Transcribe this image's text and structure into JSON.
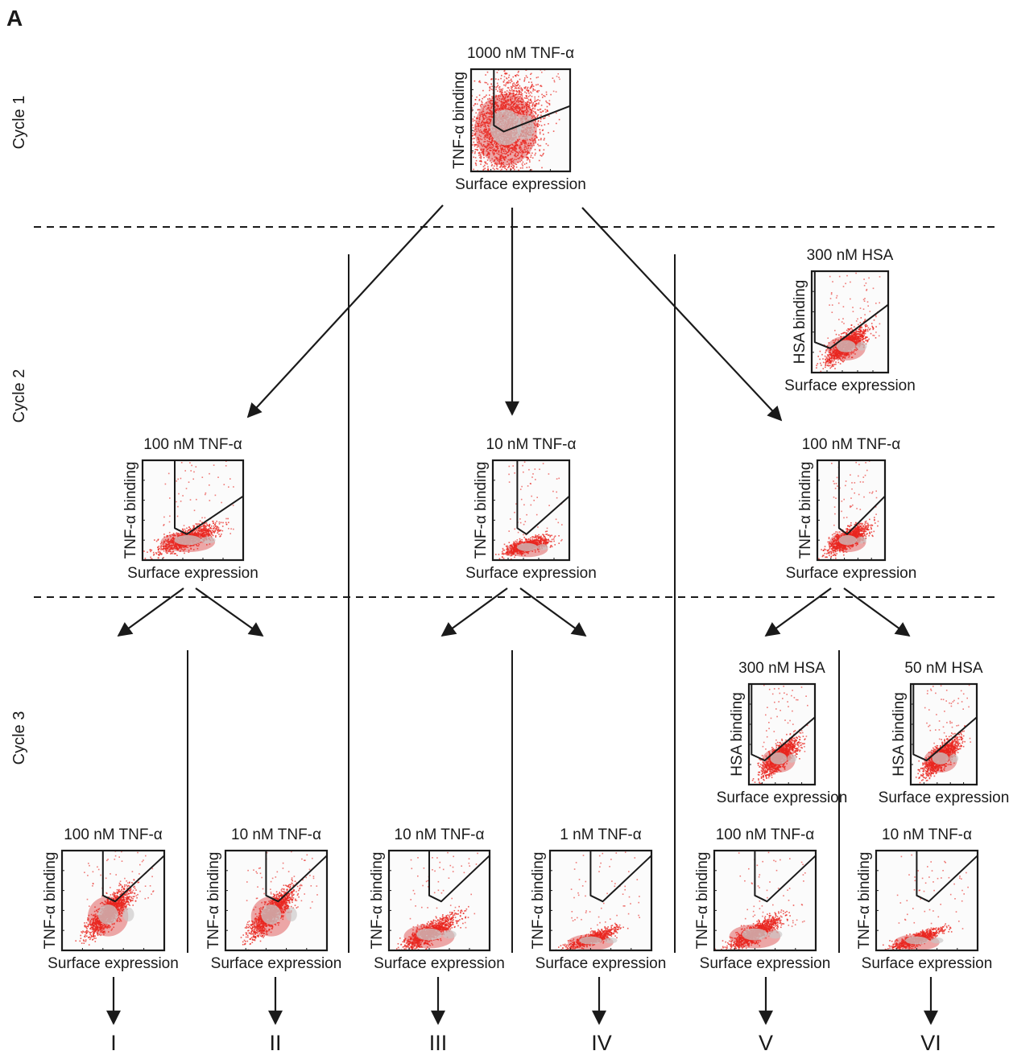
{
  "panel_letter": "A",
  "cycles": [
    "Cycle 1",
    "Cycle 2",
    "Cycle 3"
  ],
  "axis_labels": {
    "x": "Surface expression",
    "y_tnf": "TNF-α binding",
    "y_hsa": "HSA binding"
  },
  "plots": [
    {
      "title": "1000 nM TNF-α",
      "ytype": "tnf",
      "kind": "c1"
    },
    {
      "title": "300 nM HSA",
      "ytype": "hsa",
      "kind": "hsa"
    },
    {
      "title": "100 nM TNF-α",
      "ytype": "tnf",
      "kind": "c2"
    },
    {
      "title": "10 nM TNF-α",
      "ytype": "tnf",
      "kind": "c2low"
    },
    {
      "title": "100 nM TNF-α",
      "ytype": "tnf",
      "kind": "c2"
    },
    {
      "title": "300 nM HSA",
      "ytype": "hsa",
      "kind": "hsa"
    },
    {
      "title": "50 nM HSA",
      "ytype": "hsa",
      "kind": "hsa"
    },
    {
      "title": "100 nM TNF-α",
      "ytype": "tnf",
      "kind": "c3"
    },
    {
      "title": "10 nM TNF-α",
      "ytype": "tnf",
      "kind": "c3"
    },
    {
      "title": "10 nM TNF-α",
      "ytype": "tnf",
      "kind": "c3low"
    },
    {
      "title": "1 nM TNF-α",
      "ytype": "tnf",
      "kind": "c3vlow"
    },
    {
      "title": "100 nM TNF-α",
      "ytype": "tnf",
      "kind": "c3low"
    },
    {
      "title": "10 nM TNF-α",
      "ytype": "tnf",
      "kind": "c3vlow"
    }
  ],
  "outputs": [
    "I",
    "II",
    "III",
    "IV",
    "V",
    "VI"
  ],
  "colors": {
    "ink": "#1a1a1a",
    "dot": "#e8251f",
    "core": "#e06060",
    "grey": "#c9c6c6"
  }
}
